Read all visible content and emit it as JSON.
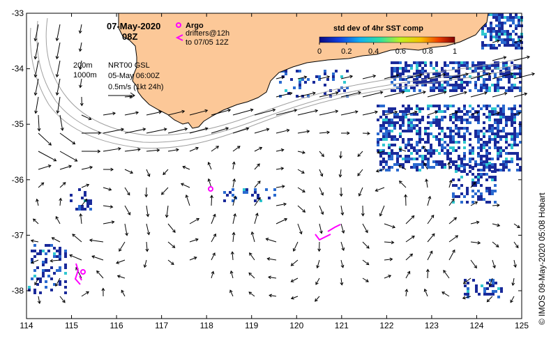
{
  "header": {
    "date": "07-May-2020",
    "time": "08Z"
  },
  "legend": {
    "argo_label": "Argo",
    "drifters_label": "drifters@12h",
    "drifters_label2": "to 07/05 12Z",
    "marker_color": "#ff00ff"
  },
  "colorbar": {
    "title": "std dev of 4hr SST comp",
    "ticks": [
      "0",
      "0.2",
      "0.4",
      "0.6",
      "0.8",
      "1"
    ]
  },
  "info": {
    "contour_200": "200m",
    "contour_1000": "1000m",
    "product": "NRT00 GSL",
    "analysis_time": "05-May 06:00Z",
    "scale_label": "0.5m/s (1kt 24h)"
  },
  "credit": "© IMOS 09-May-2020 05:08 Hobart",
  "axes": {
    "x_ticks": [
      "114",
      "115",
      "116",
      "117",
      "118",
      "119",
      "120",
      "121",
      "122",
      "123",
      "124",
      "125"
    ],
    "y_ticks": [
      "-33",
      "-34",
      "-35",
      "-36",
      "-37",
      "-38"
    ]
  },
  "colors": {
    "land": "#fcc898",
    "sst_dark": "#1a2a9a",
    "sst_mid": "#2a6ad0",
    "sst_cyan": "#30c8d0",
    "contour": "#a0a0a0"
  }
}
